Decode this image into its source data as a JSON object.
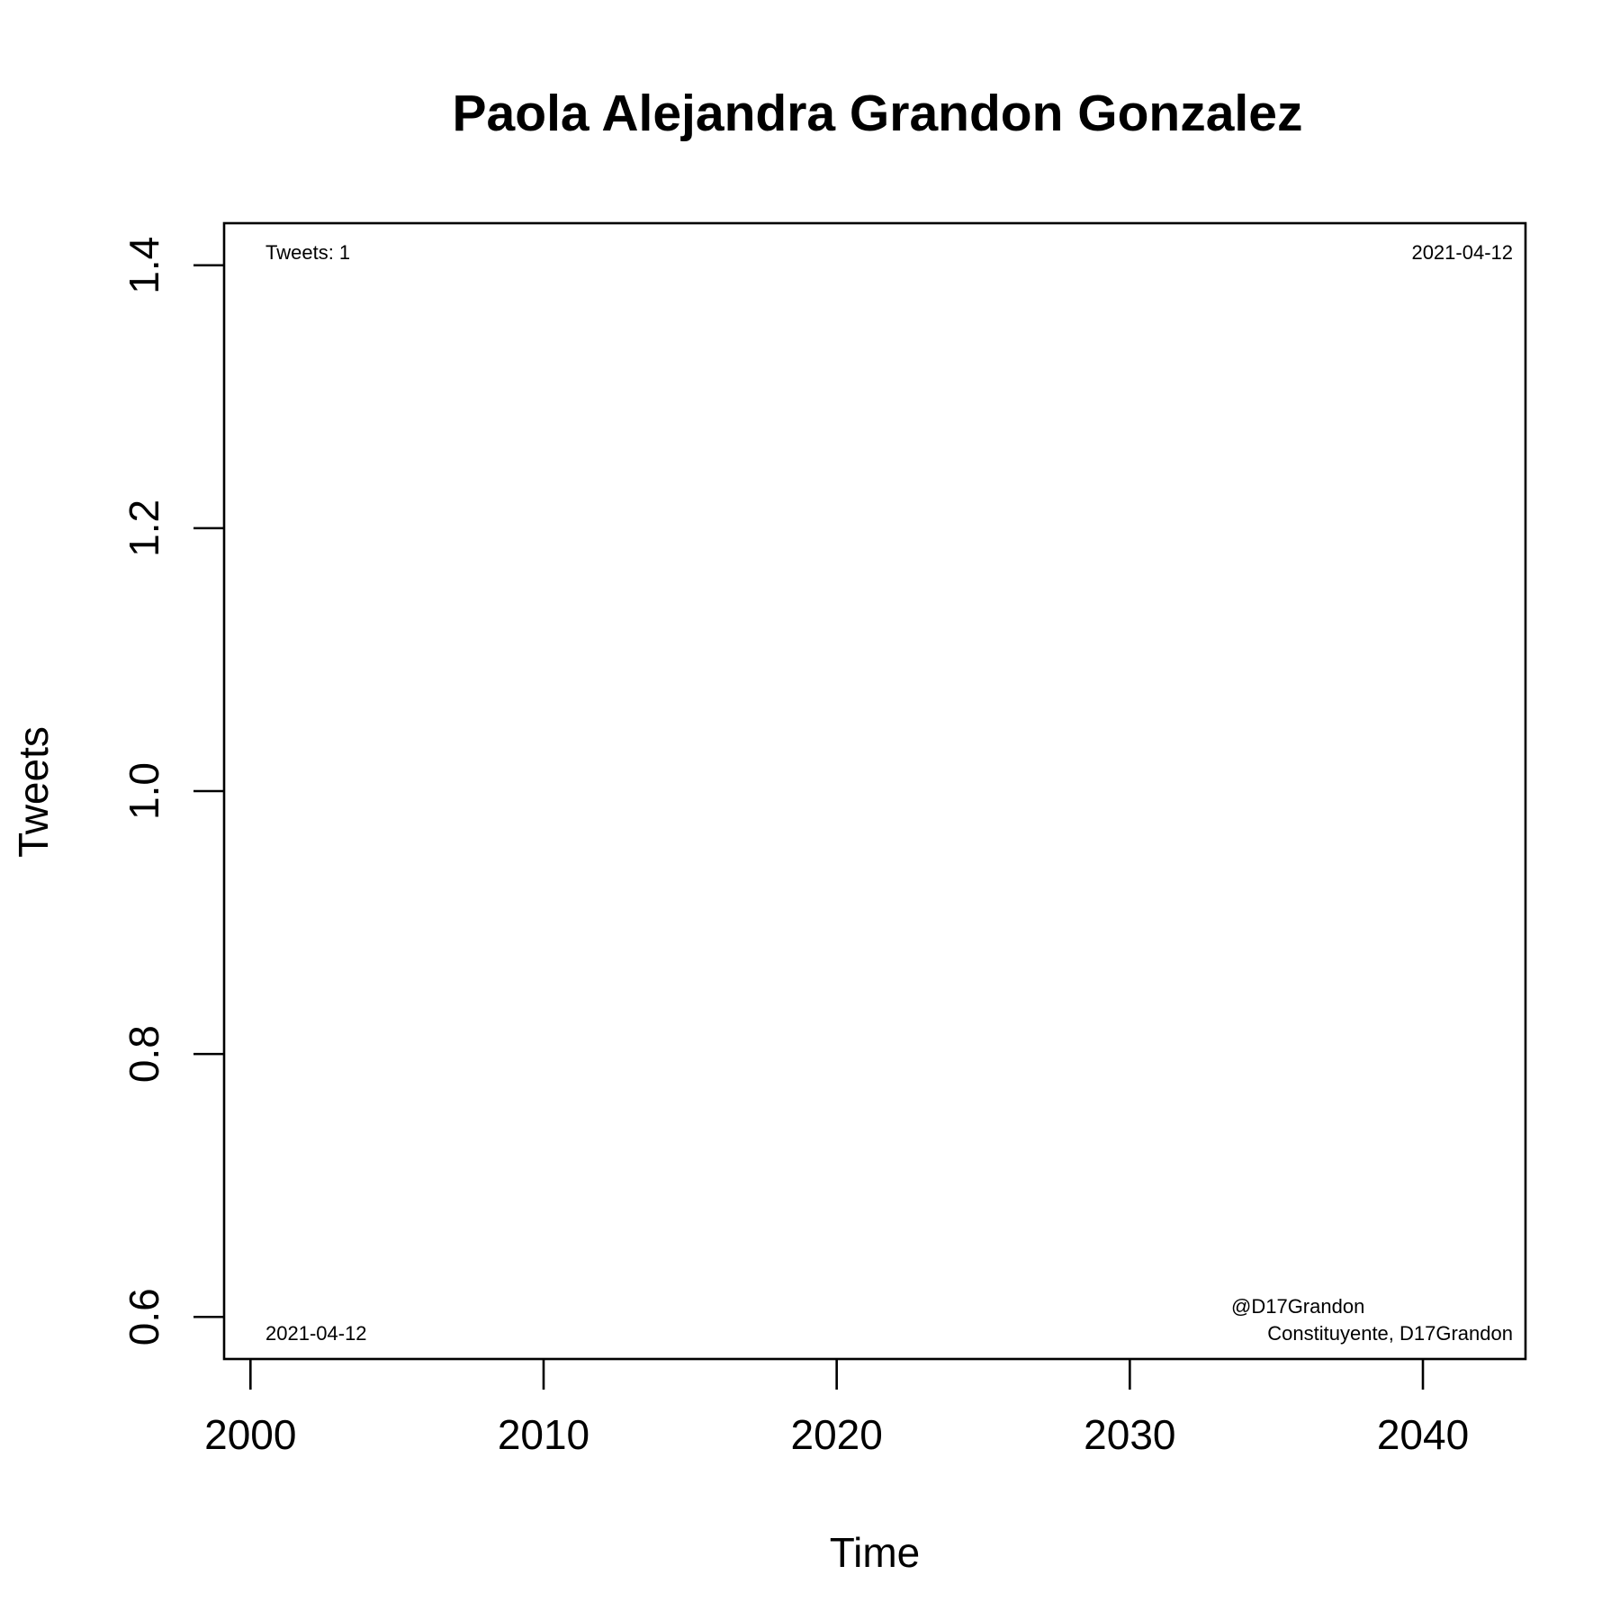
{
  "chart_data": {
    "type": "line",
    "title": "Paola Alejandra Grandon Gonzalez",
    "xlabel": "Time",
    "ylabel": "Tweets",
    "x_ticks": [
      "2000",
      "2010",
      "2020",
      "2030",
      "2040"
    ],
    "y_ticks": [
      "0.6",
      "0.8",
      "1.0",
      "1.2",
      "1.4"
    ],
    "xlim": [
      1999.1,
      2043.5
    ],
    "ylim": [
      0.568,
      1.432
    ],
    "grid": false,
    "series": [
      {
        "points": [
          {
            "x": "2021-04-12",
            "y": 1
          }
        ]
      }
    ],
    "annotations": {
      "top_left": "Tweets: 1",
      "top_right": "2021-04-12",
      "bottom_left": "2021-04-12",
      "bottom_right_line1": "@D17Grandon",
      "bottom_right_line2": "Constituyente, D17Grandon"
    }
  }
}
